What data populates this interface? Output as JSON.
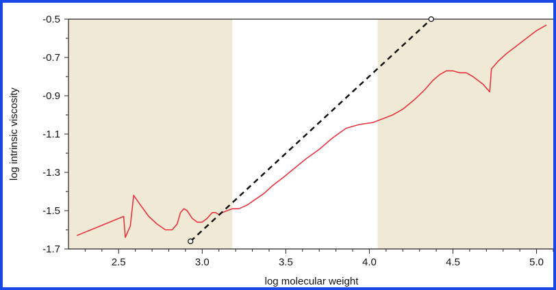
{
  "chart_data": {
    "type": "line",
    "xlabel": "log molecular weight",
    "ylabel": "log intrinsic viscosity",
    "xlim": [
      2.2,
      5.1
    ],
    "ylim": [
      -1.7,
      -0.5
    ],
    "x_ticks": [
      "2.5",
      "3.0",
      "3.5",
      "4.0",
      "4.5",
      "5.0"
    ],
    "y_ticks": [
      "-0.5",
      "-0.7",
      "-0.9",
      "-1.1",
      "-1.3",
      "-1.5",
      "-1.7"
    ],
    "shaded_regions": [
      {
        "x_start": 2.2,
        "x_end": 3.18
      },
      {
        "x_start": 4.05,
        "x_end": 5.1
      }
    ],
    "colors": {
      "shade": "#efe9d6",
      "curve": "#e8333f",
      "fit_line": "#111111",
      "frame": "#1a48e6"
    },
    "series": [
      {
        "style": "solid",
        "color": "#e8333f",
        "x": [
          2.25,
          2.53,
          2.54,
          2.57,
          2.59,
          2.63,
          2.68,
          2.73,
          2.78,
          2.82,
          2.85,
          2.87,
          2.89,
          2.91,
          2.94,
          2.97,
          3.0,
          3.03,
          3.06,
          3.08,
          3.1,
          3.12,
          3.15,
          3.18,
          3.22,
          3.27,
          3.32,
          3.37,
          3.42,
          3.48,
          3.55,
          3.62,
          3.7,
          3.78,
          3.86,
          3.94,
          4.02,
          4.08,
          4.14,
          4.2,
          4.27,
          4.33,
          4.38,
          4.42,
          4.46,
          4.5,
          4.54,
          4.58,
          4.62,
          4.65,
          4.68,
          4.7,
          4.72,
          4.73,
          4.74,
          4.77,
          4.82,
          4.88,
          4.94,
          5.0,
          5.06
        ],
        "y": [
          -1.63,
          -1.53,
          -1.64,
          -1.58,
          -1.42,
          -1.47,
          -1.53,
          -1.57,
          -1.6,
          -1.6,
          -1.57,
          -1.51,
          -1.49,
          -1.5,
          -1.54,
          -1.56,
          -1.56,
          -1.54,
          -1.51,
          -1.51,
          -1.52,
          -1.51,
          -1.5,
          -1.49,
          -1.49,
          -1.47,
          -1.44,
          -1.41,
          -1.37,
          -1.33,
          -1.28,
          -1.23,
          -1.18,
          -1.12,
          -1.07,
          -1.05,
          -1.04,
          -1.02,
          -1.0,
          -0.97,
          -0.92,
          -0.87,
          -0.82,
          -0.79,
          -0.77,
          -0.77,
          -0.78,
          -0.78,
          -0.8,
          -0.82,
          -0.84,
          -0.86,
          -0.88,
          -0.76,
          -0.75,
          -0.72,
          -0.68,
          -0.64,
          -0.6,
          -0.56,
          -0.53
        ]
      },
      {
        "style": "dashed",
        "color": "#111111",
        "x": [
          2.93,
          4.37
        ],
        "y": [
          -1.66,
          -0.5
        ]
      }
    ]
  }
}
